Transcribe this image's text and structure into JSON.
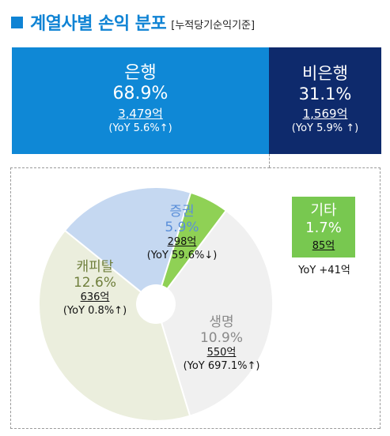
{
  "header": {
    "title": "계열사별 손익 분포",
    "subtitle": "[누적당기순익기준]"
  },
  "summary": {
    "bank": {
      "name": "은행",
      "pct": "68.9%",
      "amount": "3,479억",
      "yoy": "(YoY 5.6%↑)",
      "color": "#0f88d6"
    },
    "nonbank": {
      "name": "비은행",
      "pct": "31.1%",
      "amount": "1,569억",
      "yoy": "(YoY 5.9% ↑)",
      "color": "#0e2a6c"
    }
  },
  "labels": {
    "securities": {
      "name": "증권",
      "pct": "5.9%",
      "amount": "298억",
      "yoy": "(YoY 59.6%↓)"
    },
    "capital": {
      "name": "캐피탈",
      "pct": "12.6%",
      "amount": "636억",
      "yoy": "(YoY 0.8%↑)"
    },
    "life": {
      "name": "생명",
      "pct": "10.9%",
      "amount": "550억",
      "yoy": "(YoY 697.1%↑)"
    },
    "etc": {
      "name": "기타",
      "pct": "1.7%",
      "amount": "85억",
      "yoy": "YoY +41억"
    }
  },
  "chart_data": {
    "type": "pie",
    "title": "",
    "categories": [
      "증권",
      "기타",
      "생명",
      "캐피탈"
    ],
    "values": [
      298,
      85,
      550,
      636
    ],
    "percent": [
      5.9,
      1.7,
      10.9,
      12.6
    ],
    "colors": [
      "#c5d8f1",
      "#8fd155",
      "#f0f0f0",
      "#ebeedd"
    ]
  }
}
